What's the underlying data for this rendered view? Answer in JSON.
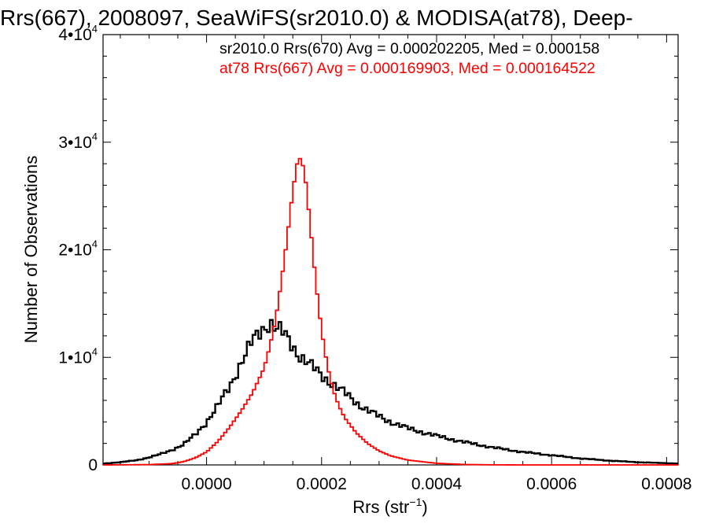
{
  "chart_data": {
    "type": "line",
    "step": true,
    "title": "Rrs(667), 2008097, SeaWiFS(sr2010.0) & MODISA(at78), Deep-",
    "xlabel_main": "Rrs (str",
    "xlabel_sup": "−1",
    "xlabel_close": ")",
    "ylabel": "Number of Observations",
    "xlim": [
      -0.00018,
      0.00082
    ],
    "ylim": [
      0,
      40000
    ],
    "x_ticks": [
      {
        "value": 0.0,
        "label": "0.0000"
      },
      {
        "value": 0.0002,
        "label": "0.0002"
      },
      {
        "value": 0.0004,
        "label": "0.0004"
      },
      {
        "value": 0.0006,
        "label": "0.0006"
      },
      {
        "value": 0.0008,
        "label": "0.0008"
      }
    ],
    "y_ticks": [
      {
        "value": 0,
        "label": "0",
        "exp": ""
      },
      {
        "value": 10000,
        "label": "1•10",
        "exp": "4"
      },
      {
        "value": 20000,
        "label": "2•10",
        "exp": "4"
      },
      {
        "value": 30000,
        "label": "3•10",
        "exp": "4"
      },
      {
        "value": 40000,
        "label": "4•10",
        "exp": "4"
      }
    ],
    "legend": [
      {
        "text": "sr2010.0 Rrs(670) Avg = 0.000202205, Med = 0.000158",
        "color": "#000000"
      },
      {
        "text": "at78 Rrs(667) Avg = 0.000169903, Med = 0.000164522",
        "color": "#ff0000"
      }
    ],
    "series": [
      {
        "name": "sr2010.0 Rrs(670)",
        "color": "#000000",
        "points": [
          [
            -0.00018,
            120
          ],
          [
            -0.00015,
            250
          ],
          [
            -0.00012,
            450
          ],
          [
            -0.0001,
            700
          ],
          [
            -8e-05,
            1000
          ],
          [
            -6e-05,
            1400
          ],
          [
            -4e-05,
            1900
          ],
          [
            -2e-05,
            2800
          ],
          [
            0.0,
            4000
          ],
          [
            2e-05,
            5500
          ],
          [
            4e-05,
            7300
          ],
          [
            6e-05,
            9500
          ],
          [
            8e-05,
            11500
          ],
          [
            0.0001,
            12800
          ],
          [
            0.00011,
            13300
          ],
          [
            0.00012,
            12700
          ],
          [
            0.00013,
            12400
          ],
          [
            0.00014,
            11800
          ],
          [
            0.00015,
            11000
          ],
          [
            0.00016,
            10300
          ],
          [
            0.00018,
            9300
          ],
          [
            0.0002,
            8300
          ],
          [
            0.00022,
            7500
          ],
          [
            0.00024,
            6700
          ],
          [
            0.00026,
            5800
          ],
          [
            0.00028,
            5100
          ],
          [
            0.0003,
            4500
          ],
          [
            0.00032,
            4000
          ],
          [
            0.00035,
            3400
          ],
          [
            0.0004,
            2700
          ],
          [
            0.00045,
            2100
          ],
          [
            0.0005,
            1600
          ],
          [
            0.00055,
            1200
          ],
          [
            0.0006,
            900
          ],
          [
            0.00065,
            600
          ],
          [
            0.0007,
            400
          ],
          [
            0.00075,
            250
          ],
          [
            0.00082,
            130
          ]
        ]
      },
      {
        "name": "at78 Rrs(667)",
        "color": "#ff0000",
        "points": [
          [
            -0.00018,
            0
          ],
          [
            -0.0001,
            30
          ],
          [
            -6e-05,
            120
          ],
          [
            -4e-05,
            300
          ],
          [
            -2e-05,
            650
          ],
          [
            0.0,
            1200
          ],
          [
            2e-05,
            2200
          ],
          [
            4e-05,
            3500
          ],
          [
            6e-05,
            5000
          ],
          [
            8e-05,
            6700
          ],
          [
            0.0001,
            9000
          ],
          [
            0.00011,
            11000
          ],
          [
            0.00012,
            13500
          ],
          [
            0.00013,
            17000
          ],
          [
            0.00014,
            21000
          ],
          [
            0.00015,
            25500
          ],
          [
            0.00016,
            28800
          ],
          [
            0.00017,
            27500
          ],
          [
            0.00018,
            22500
          ],
          [
            0.00019,
            17000
          ],
          [
            0.0002,
            12500
          ],
          [
            0.00021,
            9200
          ],
          [
            0.00022,
            7000
          ],
          [
            0.00023,
            5500
          ],
          [
            0.00024,
            4400
          ],
          [
            0.00026,
            3000
          ],
          [
            0.00028,
            2000
          ],
          [
            0.0003,
            1300
          ],
          [
            0.00032,
            850
          ],
          [
            0.00035,
            450
          ],
          [
            0.0004,
            150
          ],
          [
            0.00045,
            40
          ],
          [
            0.0005,
            10
          ],
          [
            0.00055,
            0
          ],
          [
            0.00082,
            0
          ]
        ]
      }
    ]
  }
}
